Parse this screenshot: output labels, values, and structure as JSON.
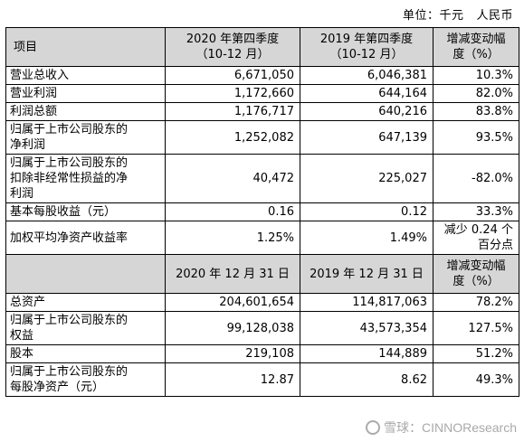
{
  "unit": {
    "label": "单位：千元",
    "currency": "人民币"
  },
  "header1": {
    "item": "项目",
    "col1_line1": "2020 年第四季度",
    "col1_line2": "（10-12 月）",
    "col2_line1": "2019 年第四季度",
    "col2_line2": "（10-12 月）",
    "change_line1": "增减变动幅",
    "change_line2": "度（%）"
  },
  "rows1": [
    {
      "item": "营业总收入",
      "v1": "6,671,050",
      "v2": "6,046,381",
      "chg": "10.3%"
    },
    {
      "item": "营业利润",
      "v1": "1,172,660",
      "v2": "644,164",
      "chg": "82.0%"
    },
    {
      "item": "利润总额",
      "v1": "1,176,717",
      "v2": "640,216",
      "chg": "83.8%"
    },
    {
      "item_l1": "归属于上市公司股东的",
      "item_l2": "净利润",
      "v1": "1,252,082",
      "v2": "647,139",
      "chg": "93.5%"
    },
    {
      "item_l1": "归属于上市公司股东的",
      "item_l2": "扣除非经常性损益的净",
      "item_l3": "利润",
      "v1": "40,472",
      "v2": "225,027",
      "chg": "-82.0%"
    },
    {
      "item": "基本每股收益（元）",
      "v1": "0.16",
      "v2": "0.12",
      "chg": "33.3%"
    },
    {
      "item": "加权平均净资产收益率",
      "v1": "1.25%",
      "v2": "1.49%",
      "chg_l1": "减少 0.24 个",
      "chg_l2": "百分点"
    }
  ],
  "header2": {
    "col1": "2020 年 12 月 31 日",
    "col2": "2019 年 12 月 31 日",
    "change_line1": "增减变动幅",
    "change_line2": "度（%）"
  },
  "rows2": [
    {
      "item": "总资产",
      "v1": "204,601,654",
      "v2": "114,817,063",
      "chg": "78.2%"
    },
    {
      "item_l1": "归属于上市公司股东的",
      "item_l2": "权益",
      "v1": "99,128,038",
      "v2": "43,573,354",
      "chg": "127.5%"
    },
    {
      "item": "股本",
      "v1": "219,108",
      "v2": "144,889",
      "chg": "51.2%"
    },
    {
      "item_l1": "归属于上市公司股东的",
      "item_l2": "每股净资产（元）",
      "v1": "12.87",
      "v2": "8.62",
      "chg": "49.3%"
    }
  ],
  "watermark": {
    "text": "雪球：CINNOResearch"
  }
}
